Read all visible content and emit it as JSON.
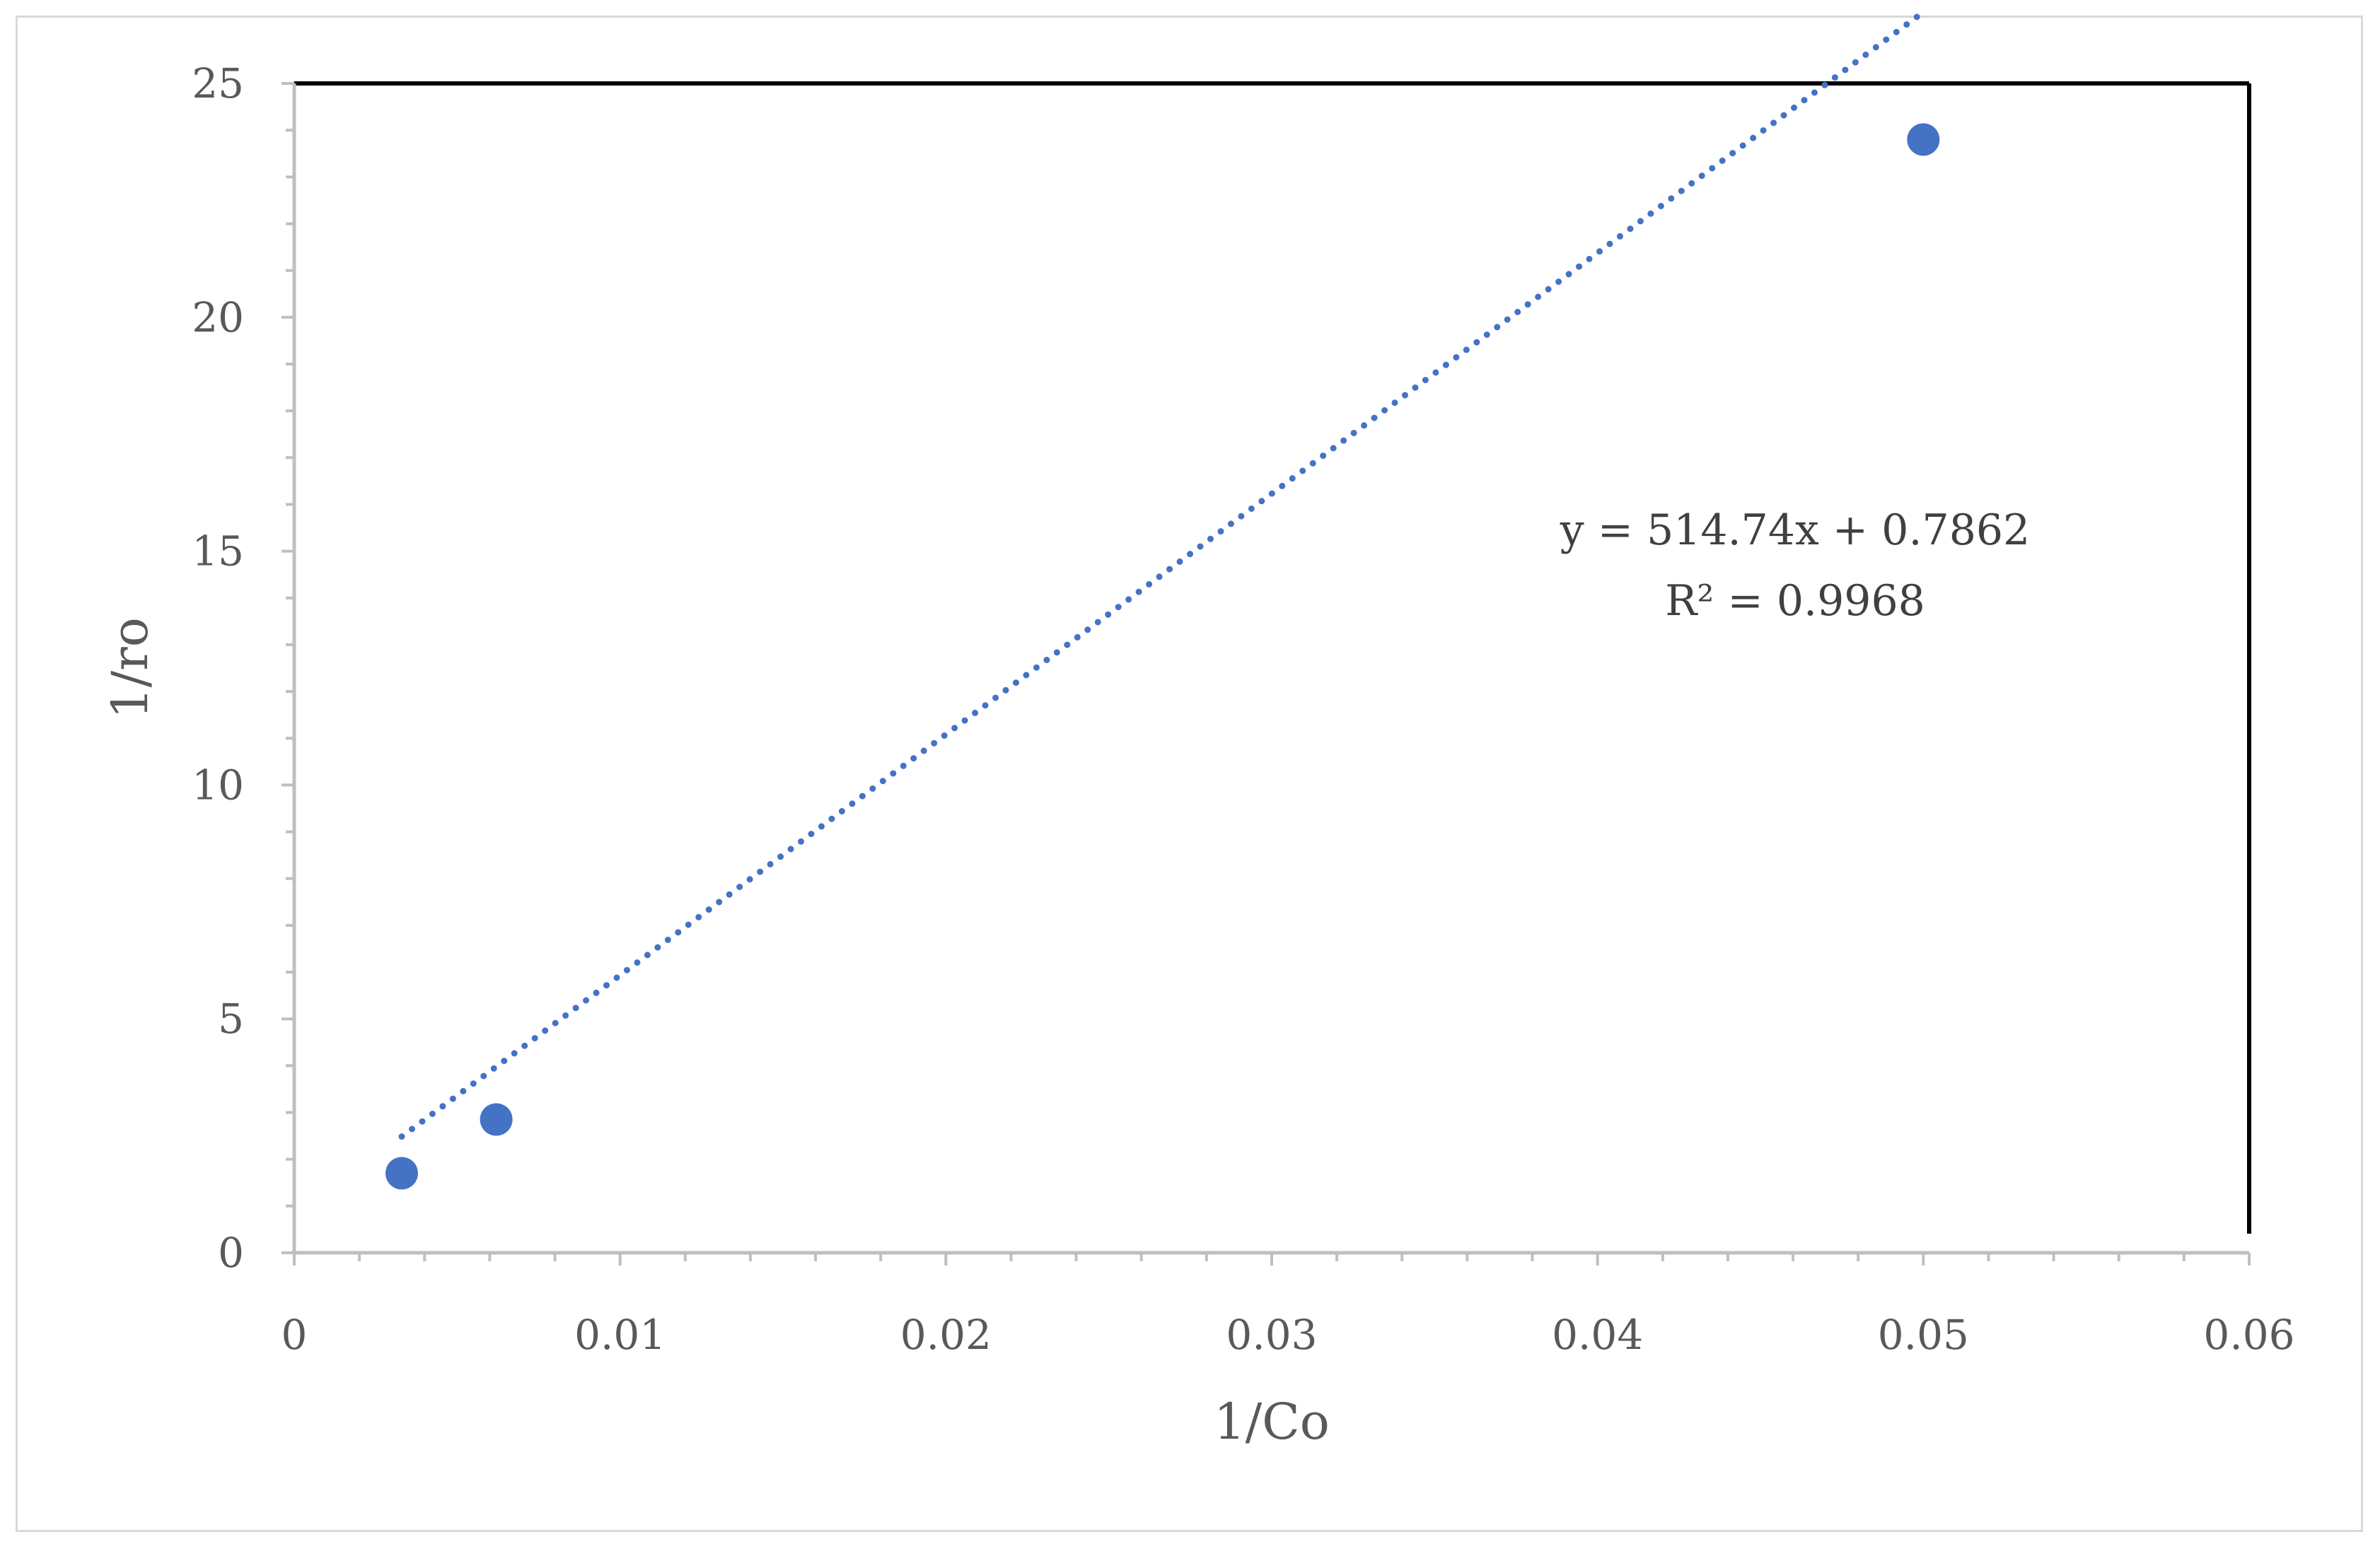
{
  "chart_data": {
    "type": "scatter",
    "title": "",
    "xlabel": "1/Co",
    "ylabel": "1/ro",
    "xlim": [
      0,
      0.06
    ],
    "ylim": [
      0,
      25
    ],
    "x_ticks": [
      0,
      0.01,
      0.02,
      0.03,
      0.04,
      0.05,
      0.06
    ],
    "x_tick_labels": [
      "0",
      "0.01",
      "0.02",
      "0.03",
      "0.04",
      "0.05",
      "0.06"
    ],
    "y_ticks": [
      0,
      5,
      10,
      15,
      20,
      25
    ],
    "y_tick_labels": [
      "0",
      "5",
      "10",
      "15",
      "20",
      "25"
    ],
    "grid": false,
    "legend": "none",
    "series": [
      {
        "color": "#4472c4",
        "points": [
          {
            "x": 0.0033,
            "y": 1.7
          },
          {
            "x": 0.0062,
            "y": 2.85
          },
          {
            "x": 0.05,
            "y": 23.8
          }
        ],
        "trendline": {
          "type": "linear",
          "style": "dotted",
          "slope": 514.74,
          "intercept": 0.7862,
          "x_range": [
            0.0033,
            0.05
          ]
        }
      }
    ],
    "annotations": {
      "equation": "y = 514.74x + 0.7862",
      "r_squared": "R² = 0.9968"
    }
  },
  "colors": {
    "series": "#4472c4",
    "axis": "#bfbfbf",
    "plot_border": "#000000",
    "text": "#595959"
  }
}
